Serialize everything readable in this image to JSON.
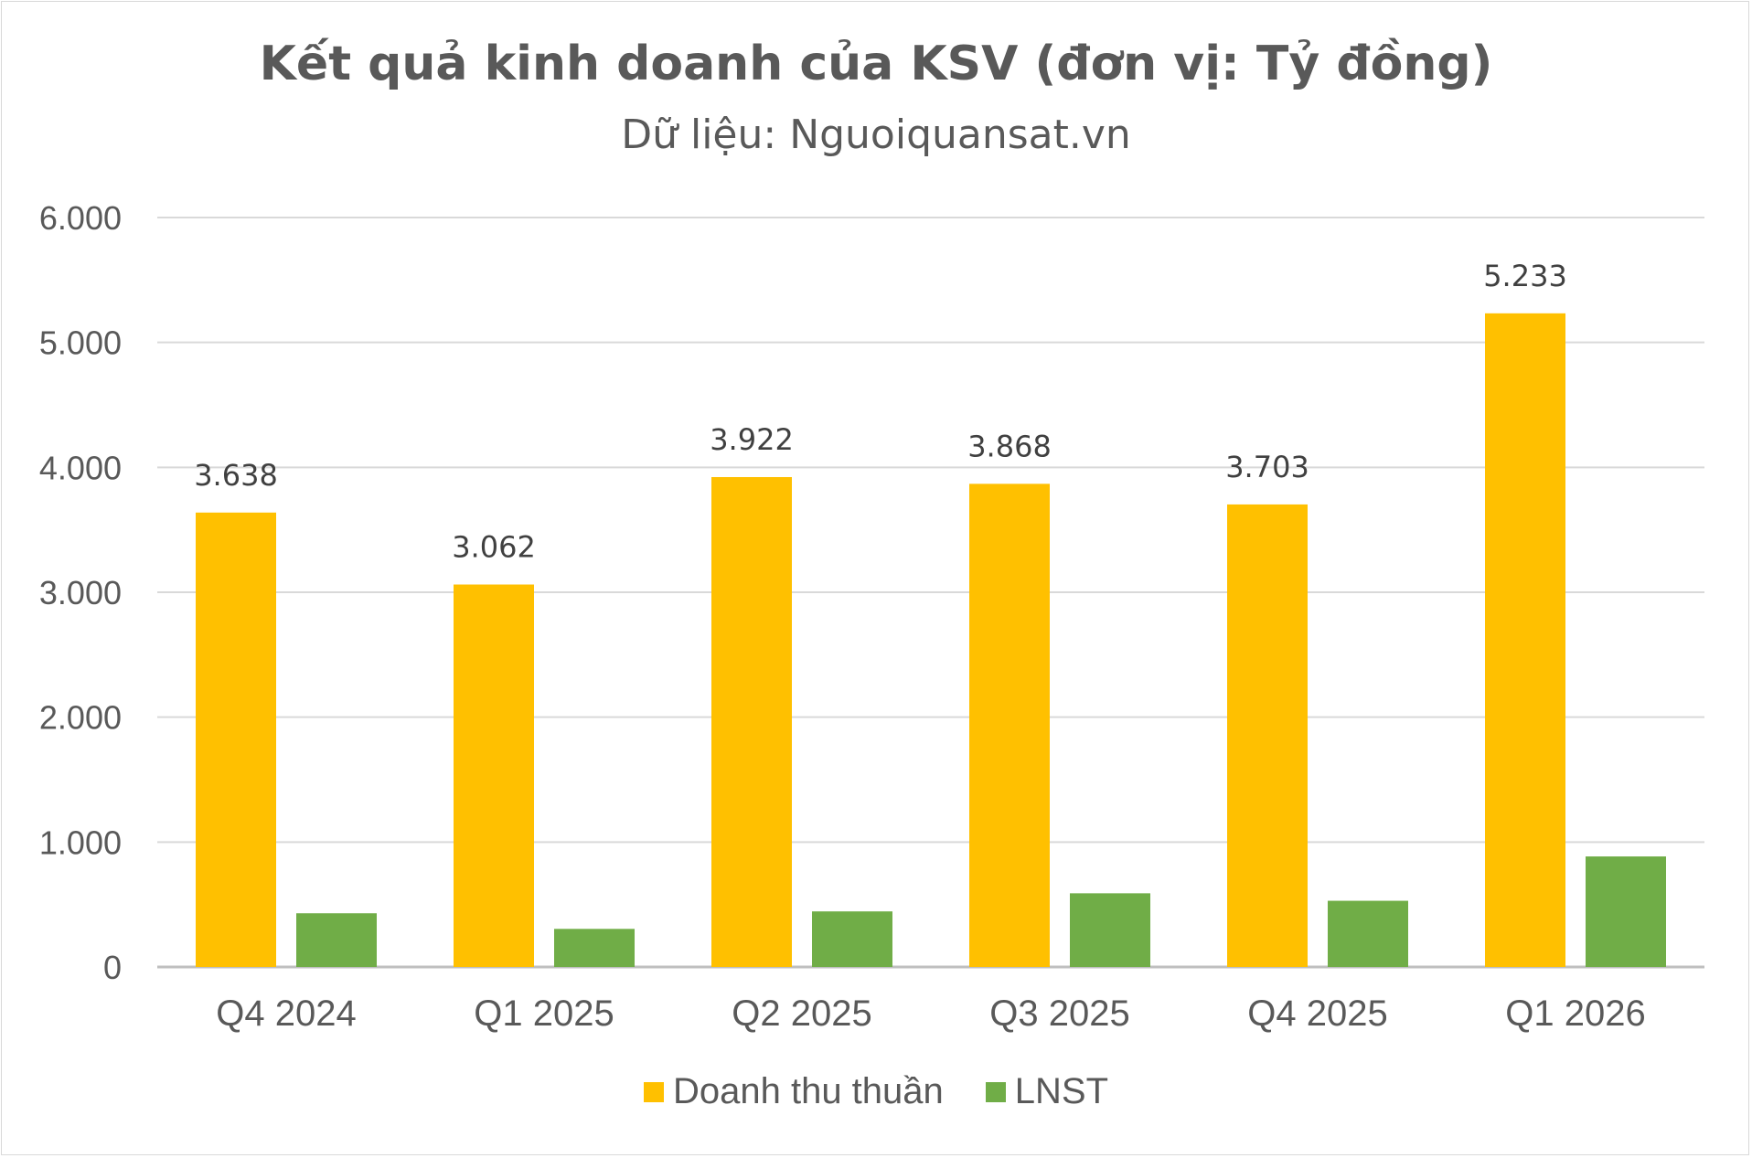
{
  "chart_data": {
    "type": "bar",
    "title": "Kết quả kinh doanh của KSV (đơn vị: Tỷ đồng)",
    "subtitle": "Dữ liệu: Nguoiquansat.vn",
    "categories": [
      "Q4 2024",
      "Q1 2025",
      "Q2 2025",
      "Q3 2025",
      "Q4 2025",
      "Q1 2026"
    ],
    "series": [
      {
        "name": "Doanh thu thuần",
        "color": "#FFC000",
        "values": [
          3638,
          3062,
          3922,
          3868,
          3703,
          5233
        ],
        "labels": [
          "3.638",
          "3.062",
          "3.922",
          "3.868",
          "3.703",
          "5.233"
        ]
      },
      {
        "name": "LNST",
        "color": "#70AD47",
        "values": [
          430,
          305,
          445,
          590,
          530,
          885
        ]
      }
    ],
    "ylim": [
      0,
      6000
    ],
    "yticks": [
      0,
      1000,
      2000,
      3000,
      4000,
      5000,
      6000
    ],
    "ytick_labels": [
      "0",
      "1.000",
      "2.000",
      "3.000",
      "4.000",
      "5.000",
      "6.000"
    ],
    "grid": true,
    "legend_position": "bottom",
    "xlabel": "",
    "ylabel": ""
  }
}
